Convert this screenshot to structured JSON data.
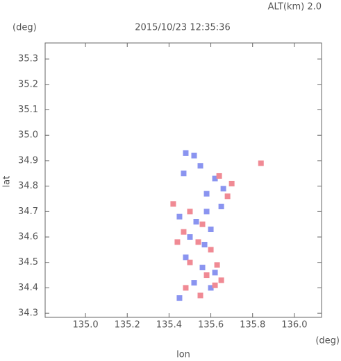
{
  "chart_data": {
    "type": "scatter",
    "title": "2015/10/23 12:35:36",
    "annotation": "ALT(km) 2.0",
    "y_unit": "(deg)",
    "x_unit": "(deg)",
    "x_label": "lon",
    "y_label": "lat",
    "xlim": [
      134.807,
      136.13
    ],
    "ylim": [
      34.284,
      35.363
    ],
    "xticks": [
      {
        "value": 135.0,
        "label": "135.0"
      },
      135.2,
      135.4,
      135.6,
      135.8,
      {
        "value": 136.0,
        "label": "136.0"
      }
    ],
    "yticks": [
      34.3,
      34.4,
      34.5,
      34.6,
      34.7,
      34.8,
      34.9,
      {
        "value": 35.0,
        "label": "35.0"
      },
      35.1,
      35.2,
      35.3
    ],
    "series": [
      {
        "color": "#8a94f0",
        "x": [
          135.48,
          135.52,
          135.55,
          135.47,
          135.62,
          135.66,
          135.58,
          135.45,
          135.53,
          135.6,
          135.5,
          135.57,
          135.48,
          135.56,
          135.62,
          135.52,
          135.6,
          135.45,
          135.65,
          135.58
        ],
        "values": [
          34.93,
          34.92,
          34.88,
          34.85,
          34.83,
          34.79,
          34.77,
          34.68,
          34.66,
          34.63,
          34.6,
          34.57,
          34.52,
          34.48,
          34.46,
          34.42,
          34.4,
          34.36,
          34.72,
          34.7
        ]
      },
      {
        "color": "#f08a94",
        "x": [
          135.84,
          135.7,
          135.64,
          135.5,
          135.56,
          135.47,
          135.54,
          135.6,
          135.5,
          135.63,
          135.65,
          135.62,
          135.48,
          135.55,
          135.42,
          135.44,
          135.68,
          135.58
        ],
        "values": [
          34.89,
          34.81,
          34.84,
          34.7,
          34.65,
          34.62,
          34.58,
          34.55,
          34.5,
          34.49,
          34.43,
          34.41,
          34.4,
          34.37,
          34.73,
          34.58,
          34.76,
          34.45
        ]
      }
    ]
  }
}
